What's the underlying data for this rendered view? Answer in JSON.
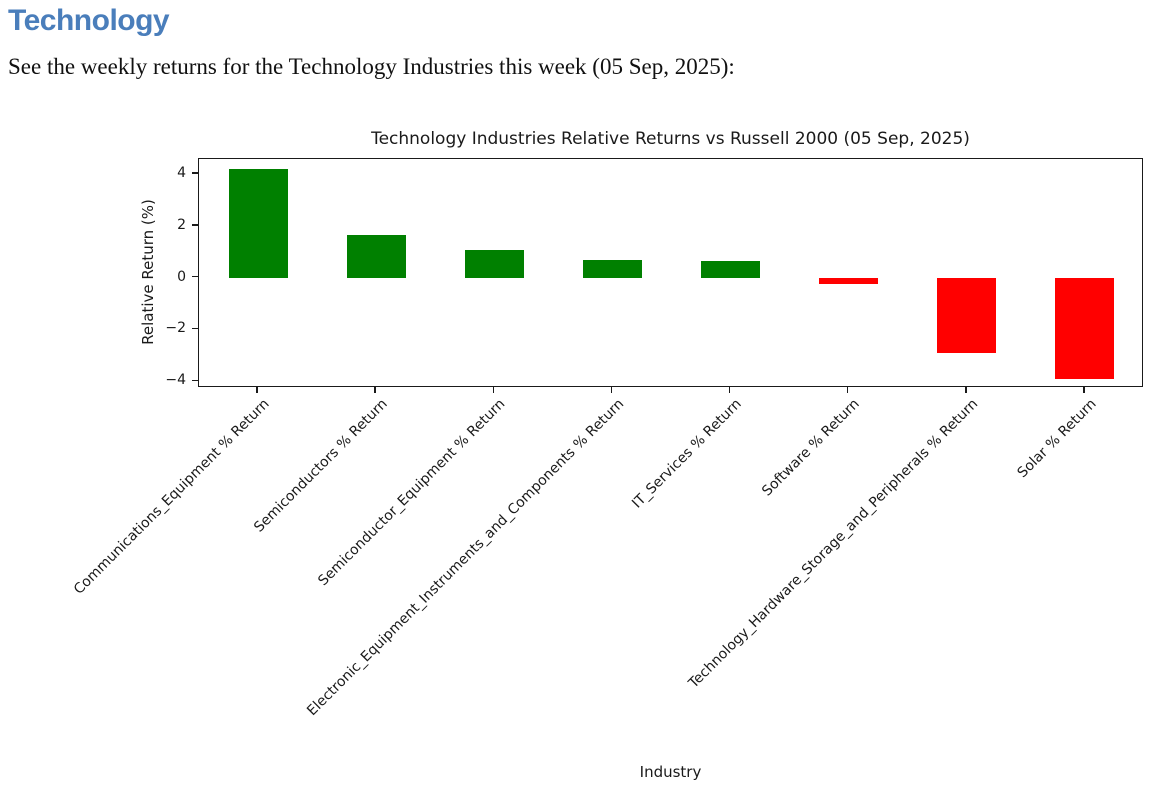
{
  "page": {
    "heading": "Technology",
    "heading_color": "#4A7EBB",
    "description": "See the weekly returns for the Technology Industries this week (05 Sep, 2025):"
  },
  "chart_data": {
    "type": "bar",
    "title": "Technology Industries Relative Returns vs Russell 2000 (05 Sep, 2025)",
    "xlabel": "Industry",
    "ylabel": "Relative Return (%)",
    "categories": [
      "Communications_Equipment % Return",
      "Semiconductors % Return",
      "Semiconductor_Equipment % Return",
      "Electronic_Equipment_Instruments_and_Components % Return",
      "IT_Services % Return",
      "Software % Return",
      "Technology_Hardware_Storage_and_Peripherals % Return",
      "Solar % Return"
    ],
    "values": [
      4.2,
      1.65,
      1.05,
      0.7,
      0.65,
      -0.25,
      -2.9,
      -3.9
    ],
    "positive_color": "#008000",
    "negative_color": "#ff0000",
    "yticks": [
      4,
      2,
      0,
      -2,
      -4
    ],
    "ylim": [
      -4.26,
      4.58
    ],
    "bar_rel_width": 0.5,
    "grid": false,
    "legend": false,
    "x_tick_rotation_deg": 45
  }
}
